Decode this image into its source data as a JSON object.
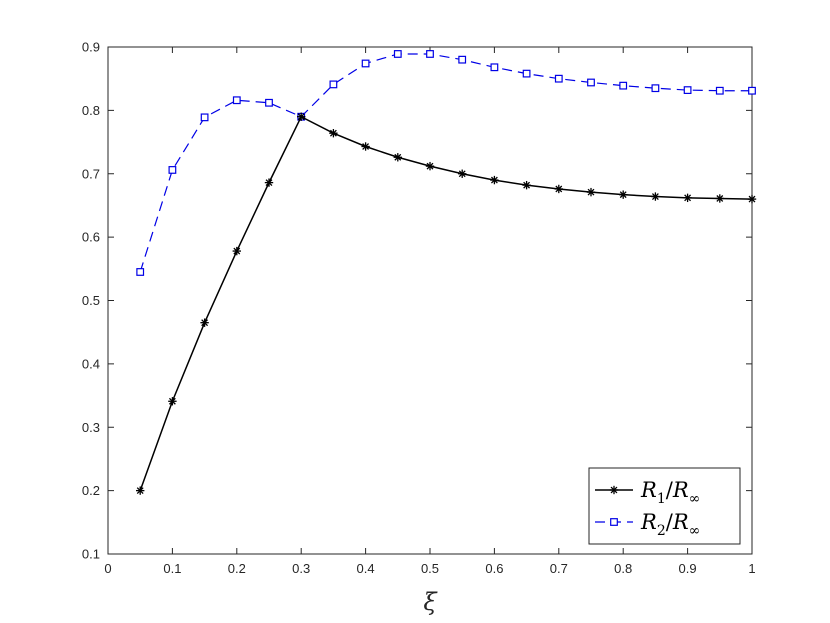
{
  "chart_data": {
    "type": "line",
    "title": "",
    "xlabel": "ξ",
    "ylabel": "",
    "xlim": [
      0,
      1
    ],
    "ylim": [
      0.1,
      0.9
    ],
    "xticks": [
      "0",
      "0.1",
      "0.2",
      "0.3",
      "0.4",
      "0.5",
      "0.6",
      "0.7",
      "0.8",
      "0.9",
      "1"
    ],
    "yticks": [
      "0.1",
      "0.2",
      "0.3",
      "0.4",
      "0.5",
      "0.6",
      "0.7",
      "0.8",
      "0.9"
    ],
    "grid": false,
    "legend_position": "bottom-right",
    "x": [
      0.05,
      0.1,
      0.15,
      0.2,
      0.25,
      0.3,
      0.35,
      0.4,
      0.45,
      0.5,
      0.55,
      0.6,
      0.65,
      0.7,
      0.75,
      0.8,
      0.85,
      0.9,
      0.95,
      1.0
    ],
    "series": [
      {
        "name": "R1/R∞",
        "color": "#000000",
        "line_style": "solid",
        "marker": "asterisk",
        "values": [
          0.2,
          0.341,
          0.465,
          0.578,
          0.686,
          0.79,
          0.764,
          0.743,
          0.726,
          0.712,
          0.7,
          0.69,
          0.682,
          0.676,
          0.671,
          0.667,
          0.664,
          0.662,
          0.661,
          0.66
        ]
      },
      {
        "name": "R2/R∞",
        "color": "#0000e6",
        "line_style": "dashed",
        "marker": "square",
        "values": [
          0.545,
          0.706,
          0.789,
          0.816,
          0.812,
          0.79,
          0.841,
          0.874,
          0.889,
          0.889,
          0.88,
          0.868,
          0.858,
          0.85,
          0.844,
          0.839,
          0.835,
          0.832,
          0.831,
          0.831
        ]
      }
    ],
    "legend": [
      {
        "main1": "R",
        "sub1": "1",
        "sep": "/",
        "main2": "R",
        "sub2": "∞"
      },
      {
        "main1": "R",
        "sub1": "2",
        "sep": "/",
        "main2": "R",
        "sub2": "∞"
      }
    ]
  }
}
